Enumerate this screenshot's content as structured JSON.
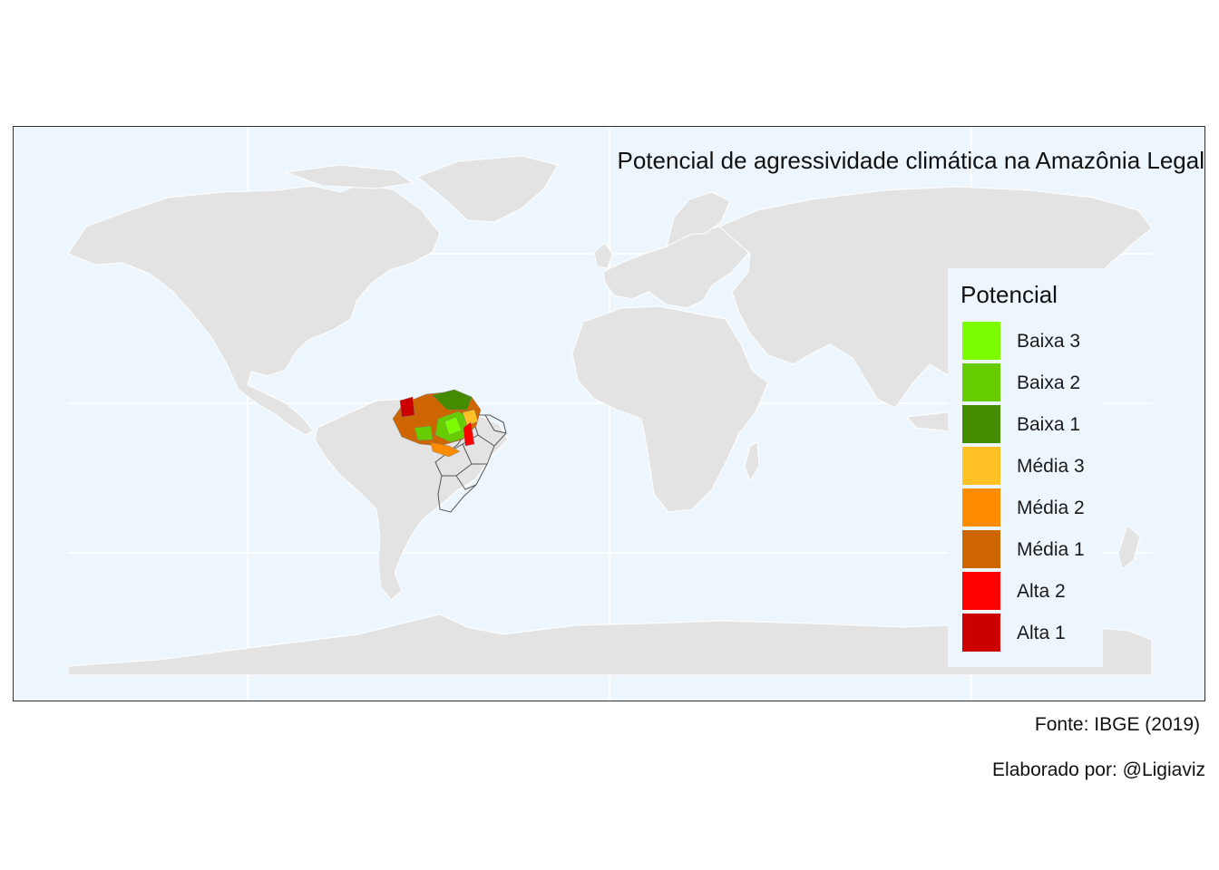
{
  "map": {
    "title": "Potencial de agressividade climática na Amazônia Legal",
    "colors": {
      "ocean": "#eef6fd",
      "land": "#e3e3e3",
      "land_border": "#ffffff",
      "graticule": "#ffffff",
      "state_border": "#555555"
    }
  },
  "legend": {
    "title": "Potencial",
    "items": [
      {
        "label": "Baixa 3",
        "color": "#7cfc00"
      },
      {
        "label": "Baixa 2",
        "color": "#66cd00"
      },
      {
        "label": "Baixa 1",
        "color": "#458b00"
      },
      {
        "label": "Média 3",
        "color": "#ffc125"
      },
      {
        "label": "Média 2",
        "color": "#ff8c00"
      },
      {
        "label": "Média 1",
        "color": "#cd6600"
      },
      {
        "label": "Alta 2",
        "color": "#ff0000"
      },
      {
        "label": "Alta 1",
        "color": "#cd0000"
      }
    ]
  },
  "captions": {
    "source": "Fonte: IBGE (2019)",
    "author": "Elaborado por: @Ligiaviz"
  }
}
